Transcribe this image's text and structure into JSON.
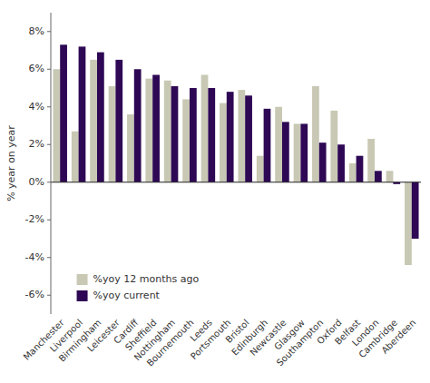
{
  "chart_data": {
    "type": "bar",
    "categories": [
      "Manchester",
      "Liverpool",
      "Birmingham",
      "Leicester",
      "Cardiff",
      "Sheffield",
      "Nottingham",
      "Bournemouth",
      "Leeds",
      "Portsmouth",
      "Bristol",
      "Edinburgh",
      "Newcastle",
      "Glasgow",
      "Southampton",
      "Oxford",
      "Belfast",
      "London",
      "Cambridge",
      "Aberdeen"
    ],
    "series": [
      {
        "name": "%yoy 12 months ago",
        "color": "#c8c8b4",
        "values": [
          6.0,
          2.7,
          6.5,
          5.1,
          3.6,
          5.5,
          5.4,
          4.4,
          5.7,
          4.2,
          4.9,
          1.4,
          4.0,
          3.1,
          5.1,
          3.8,
          1.0,
          2.3,
          0.6,
          -4.4
        ]
      },
      {
        "name": "%yoy current",
        "color": "#2e0854",
        "values": [
          7.3,
          7.2,
          6.9,
          6.5,
          6.0,
          5.7,
          5.1,
          5.0,
          5.0,
          4.8,
          4.6,
          3.9,
          3.2,
          3.1,
          2.1,
          2.0,
          1.4,
          0.6,
          -0.1,
          -3.0
        ]
      }
    ],
    "ylabel": "% year on year",
    "ylim": [
      -7,
      9
    ],
    "yticks": [
      {
        "value": -6,
        "label": "-6%"
      },
      {
        "value": -4,
        "label": "-4%"
      },
      {
        "value": -2,
        "label": "-2%"
      },
      {
        "value": 0,
        "label": "0%"
      },
      {
        "value": 2,
        "label": "2%"
      },
      {
        "value": 4,
        "label": "4%"
      },
      {
        "value": 6,
        "label": "6%"
      },
      {
        "value": 8,
        "label": "8%"
      }
    ],
    "grid": false,
    "legend": "lower left"
  }
}
